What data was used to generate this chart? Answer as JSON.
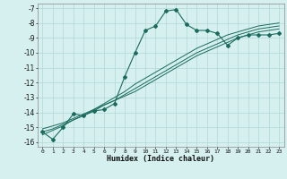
{
  "xlabel": "Humidex (Indice chaleur)",
  "background_color": "#d6f0ef",
  "grid_color": "#b0d8d5",
  "line_color": "#1a6b5e",
  "xlim": [
    -0.5,
    23.5
  ],
  "ylim": [
    -16.3,
    -6.7
  ],
  "xticks": [
    0,
    1,
    2,
    3,
    4,
    5,
    6,
    7,
    8,
    9,
    10,
    11,
    12,
    13,
    14,
    15,
    16,
    17,
    18,
    19,
    20,
    21,
    22,
    23
  ],
  "yticks": [
    -16,
    -15,
    -14,
    -13,
    -12,
    -11,
    -10,
    -9,
    -8,
    -7
  ],
  "x": [
    0,
    1,
    2,
    3,
    4,
    5,
    6,
    7,
    8,
    9,
    10,
    11,
    12,
    13,
    14,
    15,
    16,
    17,
    18,
    19,
    20,
    21,
    22,
    23
  ],
  "y_main": [
    -15.3,
    -15.8,
    -15.0,
    -14.1,
    -14.2,
    -13.9,
    -13.8,
    -13.4,
    -11.6,
    -10.0,
    -8.5,
    -8.2,
    -7.2,
    -7.1,
    -8.1,
    -8.5,
    -8.5,
    -8.7,
    -9.5,
    -9.0,
    -8.8,
    -8.8,
    -8.8,
    -8.7
  ],
  "y_reg1": [
    -15.3,
    -15.1,
    -14.8,
    -14.5,
    -14.2,
    -13.9,
    -13.5,
    -13.2,
    -12.8,
    -12.4,
    -12.0,
    -11.6,
    -11.2,
    -10.8,
    -10.4,
    -10.0,
    -9.7,
    -9.4,
    -9.1,
    -8.8,
    -8.6,
    -8.4,
    -8.3,
    -8.2
  ],
  "y_reg2": [
    -15.5,
    -15.2,
    -14.9,
    -14.5,
    -14.2,
    -13.8,
    -13.4,
    -13.0,
    -12.6,
    -12.1,
    -11.7,
    -11.3,
    -10.9,
    -10.5,
    -10.1,
    -9.7,
    -9.4,
    -9.1,
    -8.8,
    -8.6,
    -8.4,
    -8.2,
    -8.1,
    -8.0
  ],
  "y_reg3": [
    -15.1,
    -14.9,
    -14.7,
    -14.4,
    -14.1,
    -13.8,
    -13.5,
    -13.2,
    -12.9,
    -12.6,
    -12.2,
    -11.8,
    -11.4,
    -11.0,
    -10.6,
    -10.2,
    -9.9,
    -9.6,
    -9.3,
    -9.0,
    -8.8,
    -8.6,
    -8.5,
    -8.4
  ]
}
